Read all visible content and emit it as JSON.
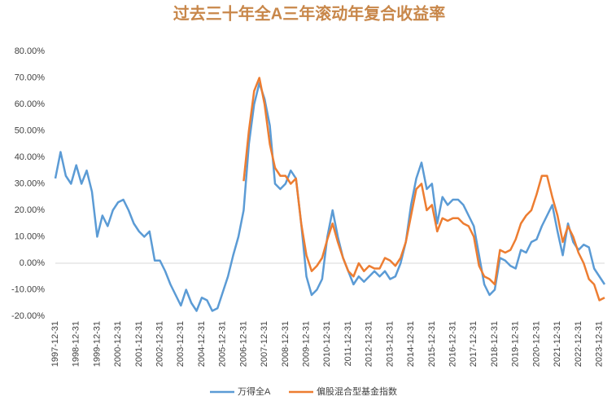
{
  "chart_data": {
    "type": "line",
    "title": "过去三十年全A三年滚动年复合收益率",
    "categories": [
      "1997-12-31",
      null,
      null,
      null,
      "1998-12-31",
      null,
      null,
      null,
      "1999-12-31",
      null,
      null,
      null,
      "2000-12-31",
      null,
      null,
      null,
      "2001-12-31",
      null,
      null,
      null,
      "2002-12-31",
      null,
      null,
      null,
      "2003-12-31",
      null,
      null,
      null,
      "2004-12-31",
      null,
      null,
      null,
      "2005-12-31",
      null,
      null,
      null,
      "2006-12-31",
      null,
      null,
      null,
      "2007-12-31",
      null,
      null,
      null,
      "2008-12-31",
      null,
      null,
      null,
      "2009-12-31",
      null,
      null,
      null,
      "2010-12-31",
      null,
      null,
      null,
      "2011-12-31",
      null,
      null,
      null,
      "2012-12-31",
      null,
      null,
      null,
      "2013-12-31",
      null,
      null,
      null,
      "2014-12-31",
      null,
      null,
      null,
      "2015-12-31",
      null,
      null,
      null,
      "2016-12-31",
      null,
      null,
      null,
      "2017-12-31",
      null,
      null,
      null,
      "2018-12-31",
      null,
      null,
      null,
      "2019-12-31",
      null,
      null,
      null,
      "2020-12-31",
      null,
      null,
      null,
      "2021-12-31",
      null,
      null,
      null,
      "2022-12-31",
      null,
      null,
      null,
      "2023-12-31",
      null
    ],
    "series": [
      {
        "name": "万得全A",
        "color": "#5b9bd5",
        "values": [
          32,
          42,
          33,
          30,
          37,
          30,
          35,
          27,
          10,
          18,
          14,
          20,
          23,
          24,
          20,
          15,
          12,
          10,
          12,
          1,
          1,
          -3,
          -8,
          -12,
          -16,
          -10,
          -15,
          -18,
          -13,
          -14,
          -18,
          -17,
          -11,
          -5,
          3,
          10,
          20,
          45,
          60,
          68,
          62,
          52,
          30,
          28,
          30,
          35,
          32,
          15,
          -5,
          -12,
          -10,
          -6,
          10,
          20,
          10,
          2,
          -3,
          -8,
          -5,
          -7,
          -5,
          -3,
          -5,
          -3,
          -6,
          -5,
          0,
          8,
          22,
          32,
          38,
          28,
          30,
          15,
          25,
          22,
          24,
          24,
          22,
          18,
          14,
          3,
          -8,
          -12,
          -10,
          2,
          1,
          -1,
          -2,
          5,
          4,
          8,
          9,
          14,
          18,
          22,
          12,
          3,
          15,
          8,
          5,
          7,
          6,
          -2,
          -5,
          -8
        ]
      },
      {
        "name": "偏股混合型基金指数",
        "color": "#ed7d31",
        "values": [
          null,
          null,
          null,
          null,
          null,
          null,
          null,
          null,
          null,
          null,
          null,
          null,
          null,
          null,
          null,
          null,
          null,
          null,
          null,
          null,
          null,
          null,
          null,
          null,
          null,
          null,
          null,
          null,
          null,
          null,
          null,
          null,
          null,
          null,
          null,
          null,
          31,
          50,
          65,
          70,
          60,
          45,
          36,
          33,
          33,
          30,
          32,
          15,
          3,
          -3,
          -1,
          2,
          9,
          15,
          8,
          2,
          -3,
          -5,
          0,
          -3,
          -1,
          -2,
          -2,
          2,
          1,
          -1,
          2,
          8,
          18,
          28,
          30,
          20,
          22,
          12,
          17,
          16,
          17,
          17,
          15,
          14,
          10,
          -1,
          -5,
          -6,
          -8,
          5,
          4,
          5,
          9,
          15,
          18,
          20,
          26,
          33,
          33,
          25,
          18,
          8,
          14,
          10,
          4,
          0,
          -6,
          -8,
          -14,
          -13
        ]
      }
    ],
    "ylim": [
      -20,
      80
    ],
    "yticks": [
      {
        "value": -20,
        "label": "-20.00%"
      },
      {
        "value": -10,
        "label": "-10.00%"
      },
      {
        "value": 0,
        "label": "0.00%"
      },
      {
        "value": 10,
        "label": "10.00%"
      },
      {
        "value": 20,
        "label": "20.00%"
      },
      {
        "value": 30,
        "label": "30.00%"
      },
      {
        "value": 40,
        "label": "40.00%"
      },
      {
        "value": 50,
        "label": "50.00%"
      },
      {
        "value": 60,
        "label": "60.00%"
      },
      {
        "value": 70,
        "label": "70.00%"
      },
      {
        "value": 80,
        "label": "80.00%"
      }
    ],
    "legend": "bottom"
  }
}
